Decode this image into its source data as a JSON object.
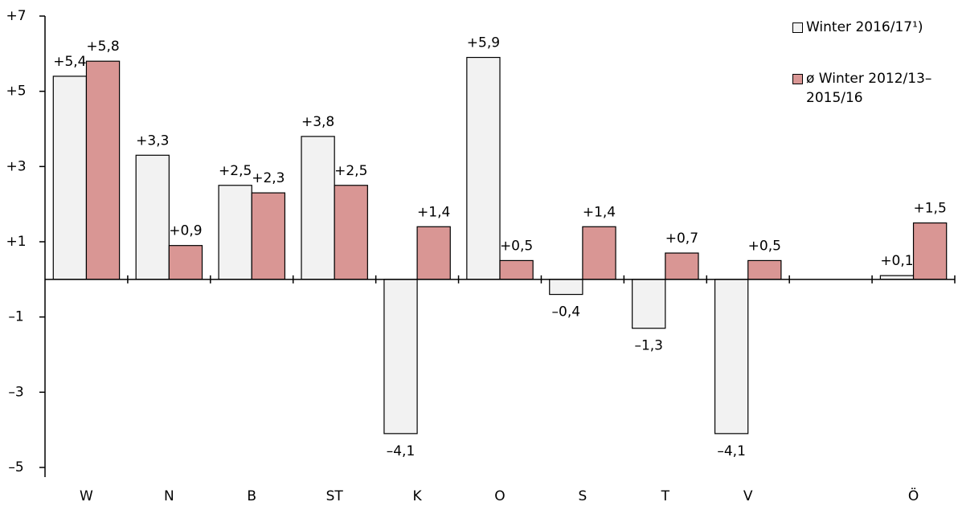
{
  "chart_data": {
    "type": "bar",
    "categories": [
      "W",
      "N",
      "B",
      "ST",
      "K",
      "O",
      "S",
      "T",
      "V",
      null,
      "Ö"
    ],
    "series": [
      {
        "name": "Winter 2016/17¹)",
        "color": "#f2f2f2",
        "values": [
          5.4,
          3.3,
          2.5,
          3.8,
          -4.1,
          5.9,
          -0.4,
          -1.3,
          -4.1,
          null,
          0.1
        ],
        "value_labels": [
          "+5,4",
          "+3,3",
          "+2,5",
          "+3,8",
          "–4,1",
          "+5,9",
          "–0,4",
          "–1,3",
          "–4,1",
          null,
          "+0,1"
        ]
      },
      {
        "name": "ø Winter 2012/13–2015/16",
        "color": "#d99694",
        "values": [
          5.8,
          0.9,
          2.3,
          2.5,
          1.4,
          0.5,
          1.4,
          0.7,
          0.5,
          null,
          1.5
        ],
        "value_labels": [
          "+5,8",
          "+0,9",
          "+2,3",
          "+2,5",
          "+1,4",
          "+0,5",
          "+1,4",
          "+0,7",
          "+0,5",
          null,
          "+1,5"
        ]
      }
    ],
    "ylim": [
      -5,
      7
    ],
    "yticks": [
      {
        "value": 7,
        "label": "+7"
      },
      {
        "value": 5,
        "label": "+5"
      },
      {
        "value": 3,
        "label": "+3"
      },
      {
        "value": 1,
        "label": "+1"
      },
      {
        "value": -1,
        "label": "–1"
      },
      {
        "value": -3,
        "label": "–3"
      },
      {
        "value": -5,
        "label": "–5"
      }
    ],
    "legend": "top-right"
  }
}
